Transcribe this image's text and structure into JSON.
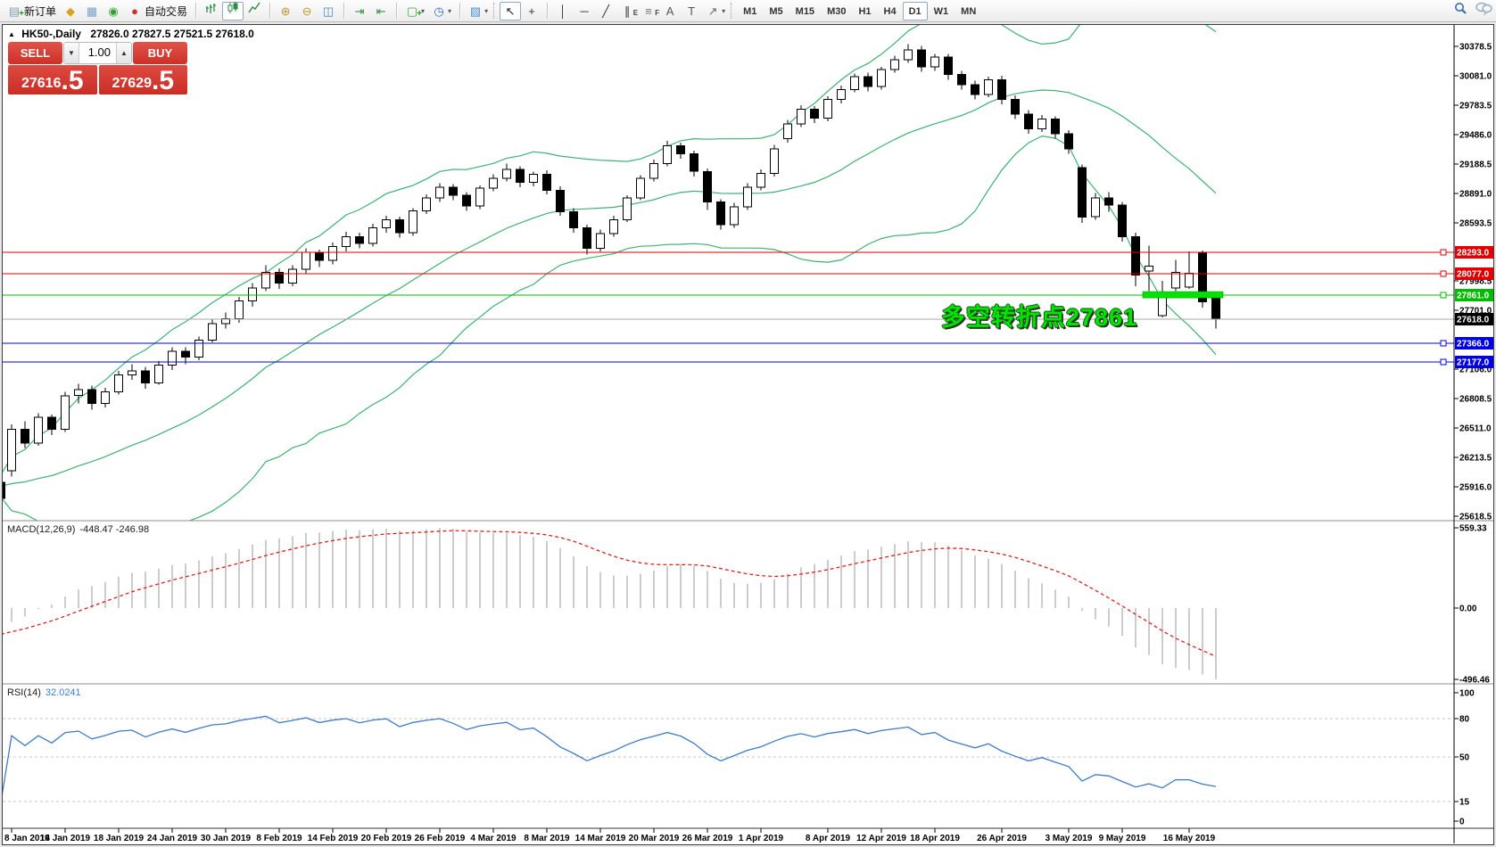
{
  "toolbar": {
    "items": [
      {
        "t": "btn",
        "name": "new-order-button",
        "glyph": "▤",
        "color": "#8a9ab0",
        "plus": true,
        "label": "新订单"
      },
      {
        "t": "icon",
        "name": "market-watch-icon",
        "glyph": "◆",
        "color": "#d9a21b"
      },
      {
        "t": "icon",
        "name": "navigator-icon",
        "glyph": "▦",
        "color": "#7aa0c8"
      },
      {
        "t": "icon",
        "name": "signals-icon",
        "glyph": "◉",
        "color": "#35a035"
      },
      {
        "t": "btn",
        "name": "autotrading-button",
        "glyph": "●",
        "color": "#cf2d26",
        "label": "自动交易"
      },
      {
        "t": "sep"
      },
      {
        "t": "icon",
        "name": "bars-chart-button",
        "svg": "bars"
      },
      {
        "t": "icon",
        "name": "candles-chart-button",
        "svg": "candles",
        "active": true
      },
      {
        "t": "icon",
        "name": "line-chart-button",
        "svg": "line"
      },
      {
        "t": "sep"
      },
      {
        "t": "icon",
        "name": "zoom-in-button",
        "glyph": "⊕",
        "color": "#c29a28"
      },
      {
        "t": "icon",
        "name": "zoom-out-button",
        "glyph": "⊖",
        "color": "#c29a28"
      },
      {
        "t": "icon",
        "name": "tile-windows-button",
        "glyph": "◫",
        "color": "#3f87c9"
      },
      {
        "t": "sep"
      },
      {
        "t": "icon",
        "name": "auto-scroll-button",
        "glyph": "⇥",
        "color": "#2f8f3f"
      },
      {
        "t": "icon",
        "name": "chart-shift-button",
        "glyph": "⇤",
        "color": "#2f8f3f"
      },
      {
        "t": "sep"
      },
      {
        "t": "icon",
        "name": "new-chart-button",
        "glyph": "▢",
        "color": "#3f9f4f",
        "plus": true,
        "dd": true
      },
      {
        "t": "icon",
        "name": "profiles-button",
        "glyph": "◷",
        "color": "#2f6fbf",
        "dd": true
      },
      {
        "t": "sep"
      },
      {
        "t": "icon",
        "name": "templates-button",
        "glyph": "▨",
        "color": "#4f8fcf",
        "dd": true
      },
      {
        "t": "grip"
      },
      {
        "t": "icon",
        "name": "cursor-button",
        "glyph": "↖",
        "color": "#222",
        "active": true
      },
      {
        "t": "icon",
        "name": "crosshair-button",
        "glyph": "+",
        "color": "#333"
      },
      {
        "t": "sep"
      },
      {
        "t": "icon",
        "name": "vertical-line-button",
        "glyph": "│",
        "color": "#333"
      },
      {
        "t": "icon",
        "name": "horizontal-line-button",
        "glyph": "─",
        "color": "#333"
      },
      {
        "t": "icon",
        "name": "trendline-button",
        "glyph": "╱",
        "color": "#333"
      },
      {
        "t": "icon",
        "name": "equidistant-channel-button",
        "glyph": "∥",
        "sub": "E",
        "color": "#333"
      },
      {
        "t": "icon",
        "name": "fibonacci-button",
        "glyph": "≡",
        "sub": "F",
        "color": "#777"
      },
      {
        "t": "icon",
        "name": "text-button",
        "glyph": "A",
        "color": "#555"
      },
      {
        "t": "icon",
        "name": "text-label-button",
        "glyph": "T",
        "color": "#555"
      },
      {
        "t": "icon",
        "name": "arrows-button",
        "glyph": "↗",
        "color": "#666",
        "dd": true
      },
      {
        "t": "grip"
      },
      {
        "t": "tf",
        "label": "M1"
      },
      {
        "t": "tf",
        "label": "M5"
      },
      {
        "t": "tf",
        "label": "M15"
      },
      {
        "t": "tf",
        "label": "M30"
      },
      {
        "t": "tf",
        "label": "H1"
      },
      {
        "t": "tf",
        "label": "H4"
      },
      {
        "t": "tf",
        "label": "D1",
        "active": true
      },
      {
        "t": "tf",
        "label": "W1"
      },
      {
        "t": "tf",
        "label": "MN"
      },
      {
        "t": "spacer"
      },
      {
        "t": "icon",
        "name": "search-icon",
        "svg": "magnifier"
      },
      {
        "t": "icon",
        "name": "chat-icon",
        "svg": "chat"
      }
    ]
  },
  "chart": {
    "title_text": "HK50-,Daily",
    "ohlc_text": "27826.0 27827.5 27521.5 27618.0",
    "collapse_glyph": "▲"
  },
  "trade_panel": {
    "sell_label": "SELL",
    "buy_label": "BUY",
    "volume": "1.00",
    "down_glyph": "▼",
    "up_glyph": "▲",
    "sell_price_main": "27616",
    "sell_price_fraction": ".5",
    "buy_price_main": "27629",
    "buy_price_fraction": ".5"
  },
  "annotation": {
    "text": "多空转折点27861",
    "color": "#00e400"
  },
  "macd": {
    "label": "MACD(12,26,9)",
    "values_text": "-448.47 -246.98",
    "axis_labels": [
      "559.33",
      "0.00",
      "-496.46"
    ],
    "fast": 12,
    "slow": 26,
    "signal": 9
  },
  "rsi": {
    "label": "RSI(14)",
    "value_text": "32.0241",
    "period": 14,
    "axis_labels": [
      "100",
      "80",
      "50",
      "15",
      "0"
    ],
    "levels": [
      80,
      50,
      15
    ]
  },
  "chart_data": {
    "type": "candlestick",
    "symbol": "HK50-",
    "period": "Daily",
    "title": "HK50-,Daily 27826.0 27827.5 27521.5 27618.0",
    "y_axis": {
      "min": 25583,
      "max": 30584,
      "tick_values": [
        30378.5,
        30081.0,
        29783.5,
        29486.0,
        29188.5,
        28891.0,
        28593.5,
        27998.5,
        27701.0,
        27106.0,
        26808.5,
        26511.0,
        26213.5,
        25916.0,
        25618.5
      ]
    },
    "x_axis_ticks": [
      {
        "i": 1,
        "label": "8 Jan 2019"
      },
      {
        "i": 5,
        "label": "14 Jan 2019"
      },
      {
        "i": 9,
        "label": "18 Jan 2019"
      },
      {
        "i": 13,
        "label": "24 Jan 2019"
      },
      {
        "i": 17,
        "label": "30 Jan 2019"
      },
      {
        "i": 21,
        "label": "8 Feb 2019"
      },
      {
        "i": 25,
        "label": "14 Feb 2019"
      },
      {
        "i": 29,
        "label": "20 Feb 2019"
      },
      {
        "i": 33,
        "label": "26 Feb 2019"
      },
      {
        "i": 37,
        "label": "4 Mar 2019"
      },
      {
        "i": 41,
        "label": "8 Mar 2019"
      },
      {
        "i": 45,
        "label": "14 Mar 2019"
      },
      {
        "i": 49,
        "label": "20 Mar 2019"
      },
      {
        "i": 53,
        "label": "26 Mar 2019"
      },
      {
        "i": 57,
        "label": "1 Apr 2019"
      },
      {
        "i": 62,
        "label": "8 Apr 2019"
      },
      {
        "i": 66,
        "label": "12 Apr 2019"
      },
      {
        "i": 70,
        "label": "18 Apr 2019"
      },
      {
        "i": 75,
        "label": "26 Apr 2019"
      },
      {
        "i": 80,
        "label": "3 May 2019"
      },
      {
        "i": 84,
        "label": "9 May 2019"
      },
      {
        "i": 89,
        "label": "16 May 2019"
      }
    ],
    "candles": [
      [
        25960,
        26010,
        25770,
        25800
      ],
      [
        26080,
        26550,
        26020,
        26500
      ],
      [
        26500,
        26580,
        26310,
        26360
      ],
      [
        26360,
        26660,
        26330,
        26620
      ],
      [
        26620,
        26650,
        26440,
        26500
      ],
      [
        26500,
        26880,
        26470,
        26840
      ],
      [
        26840,
        26960,
        26760,
        26900
      ],
      [
        26900,
        26940,
        26700,
        26760
      ],
      [
        26760,
        26920,
        26720,
        26880
      ],
      [
        26880,
        27090,
        26850,
        27050
      ],
      [
        27050,
        27160,
        27000,
        27090
      ],
      [
        27090,
        27130,
        26910,
        26970
      ],
      [
        26970,
        27190,
        26950,
        27150
      ],
      [
        27150,
        27330,
        27100,
        27290
      ],
      [
        27290,
        27330,
        27160,
        27230
      ],
      [
        27230,
        27440,
        27200,
        27400
      ],
      [
        27400,
        27610,
        27380,
        27570
      ],
      [
        27570,
        27680,
        27520,
        27620
      ],
      [
        27620,
        27840,
        27580,
        27800
      ],
      [
        27800,
        27980,
        27740,
        27930
      ],
      [
        27930,
        28160,
        27900,
        28090
      ],
      [
        28090,
        28130,
        27920,
        27980
      ],
      [
        27980,
        28160,
        27950,
        28120
      ],
      [
        28120,
        28330,
        28080,
        28290
      ],
      [
        28290,
        28320,
        28140,
        28210
      ],
      [
        28210,
        28390,
        28170,
        28350
      ],
      [
        28350,
        28500,
        28300,
        28450
      ],
      [
        28450,
        28490,
        28330,
        28380
      ],
      [
        28380,
        28580,
        28350,
        28540
      ],
      [
        28540,
        28660,
        28490,
        28620
      ],
      [
        28620,
        28650,
        28440,
        28490
      ],
      [
        28490,
        28740,
        28460,
        28710
      ],
      [
        28710,
        28880,
        28680,
        28840
      ],
      [
        28840,
        28990,
        28800,
        28950
      ],
      [
        28950,
        28980,
        28820,
        28870
      ],
      [
        28870,
        28900,
        28710,
        28760
      ],
      [
        28760,
        28970,
        28730,
        28940
      ],
      [
        28940,
        29080,
        28910,
        29040
      ],
      [
        29040,
        29190,
        29010,
        29130
      ],
      [
        29130,
        29160,
        28950,
        29000
      ],
      [
        29000,
        29110,
        28960,
        29080
      ],
      [
        29080,
        29120,
        28880,
        28920
      ],
      [
        28920,
        28960,
        28660,
        28700
      ],
      [
        28700,
        28740,
        28490,
        28540
      ],
      [
        28540,
        28570,
        28270,
        28330
      ],
      [
        28330,
        28520,
        28300,
        28480
      ],
      [
        28480,
        28660,
        28450,
        28620
      ],
      [
        28620,
        28870,
        28600,
        28840
      ],
      [
        28840,
        29070,
        28820,
        29040
      ],
      [
        29040,
        29230,
        29010,
        29190
      ],
      [
        29190,
        29420,
        29160,
        29370
      ],
      [
        29370,
        29400,
        29240,
        29290
      ],
      [
        29290,
        29320,
        29060,
        29110
      ],
      [
        29110,
        29140,
        28720,
        28800
      ],
      [
        28800,
        28830,
        28520,
        28570
      ],
      [
        28570,
        28790,
        28540,
        28750
      ],
      [
        28750,
        28990,
        28720,
        28950
      ],
      [
        28950,
        29130,
        28920,
        29090
      ],
      [
        29090,
        29380,
        29060,
        29340
      ],
      [
        29440,
        29630,
        29400,
        29590
      ],
      [
        29590,
        29780,
        29560,
        29740
      ],
      [
        29740,
        29770,
        29600,
        29650
      ],
      [
        29650,
        29870,
        29620,
        29840
      ],
      [
        29840,
        29980,
        29800,
        29940
      ],
      [
        29940,
        30100,
        29910,
        30070
      ],
      [
        30070,
        30110,
        29920,
        29970
      ],
      [
        29970,
        30170,
        29940,
        30140
      ],
      [
        30140,
        30280,
        30110,
        30240
      ],
      [
        30240,
        30400,
        30210,
        30340
      ],
      [
        30340,
        30380,
        30120,
        30170
      ],
      [
        30170,
        30300,
        30130,
        30270
      ],
      [
        30270,
        30300,
        30040,
        30090
      ],
      [
        30090,
        30130,
        29940,
        29990
      ],
      [
        29990,
        30030,
        29840,
        29890
      ],
      [
        29890,
        30070,
        29860,
        30040
      ],
      [
        30040,
        30080,
        29790,
        29840
      ],
      [
        29840,
        29880,
        29640,
        29690
      ],
      [
        29690,
        29730,
        29490,
        29540
      ],
      [
        29540,
        29680,
        29510,
        29640
      ],
      [
        29640,
        29670,
        29440,
        29490
      ],
      [
        29490,
        29530,
        29290,
        29340
      ],
      [
        29150,
        29180,
        28590,
        28650
      ],
      [
        28650,
        28890,
        28620,
        28840
      ],
      [
        28840,
        28900,
        28700,
        28770
      ],
      [
        28770,
        28800,
        28400,
        28450
      ],
      [
        28450,
        28490,
        27950,
        28060
      ],
      [
        28100,
        28360,
        27900,
        28150
      ],
      [
        27650,
        28000,
        27630,
        27840
      ],
      [
        27930,
        28215,
        27900,
        28090
      ],
      [
        27940,
        28300,
        27920,
        28080
      ],
      [
        28290,
        28310,
        27730,
        27790
      ],
      [
        27826,
        27827.5,
        27521.5,
        27618
      ]
    ],
    "hlines": [
      {
        "price": 28293.0,
        "label": "28293.0",
        "color": "#e00000"
      },
      {
        "price": 28077.0,
        "label": "28077.0",
        "color": "#e00000"
      },
      {
        "price": 27861.0,
        "label": "27861.0",
        "color": "#00bb00"
      },
      {
        "price": 27366.0,
        "label": "27366.0",
        "color": "#0000e0"
      },
      {
        "price": 27177.0,
        "label": "27177.0",
        "color": "#0000e0"
      }
    ],
    "current_price": {
      "price": 27618.0,
      "label": "27618.0",
      "line_color": "#a8a8a8",
      "label_bg": "#000000"
    },
    "highlight_bar": {
      "price": 27861.0,
      "from": 86,
      "to": 91,
      "color": "#00e400"
    },
    "indicators": {
      "bollinger": {
        "period": 20,
        "deviation": 2,
        "color": "#3CB371"
      },
      "macd": {
        "hist_color": "#b6b6b6",
        "signal_color": "#e02020"
      },
      "rsi": {
        "color": "#3f7bc8"
      }
    }
  }
}
